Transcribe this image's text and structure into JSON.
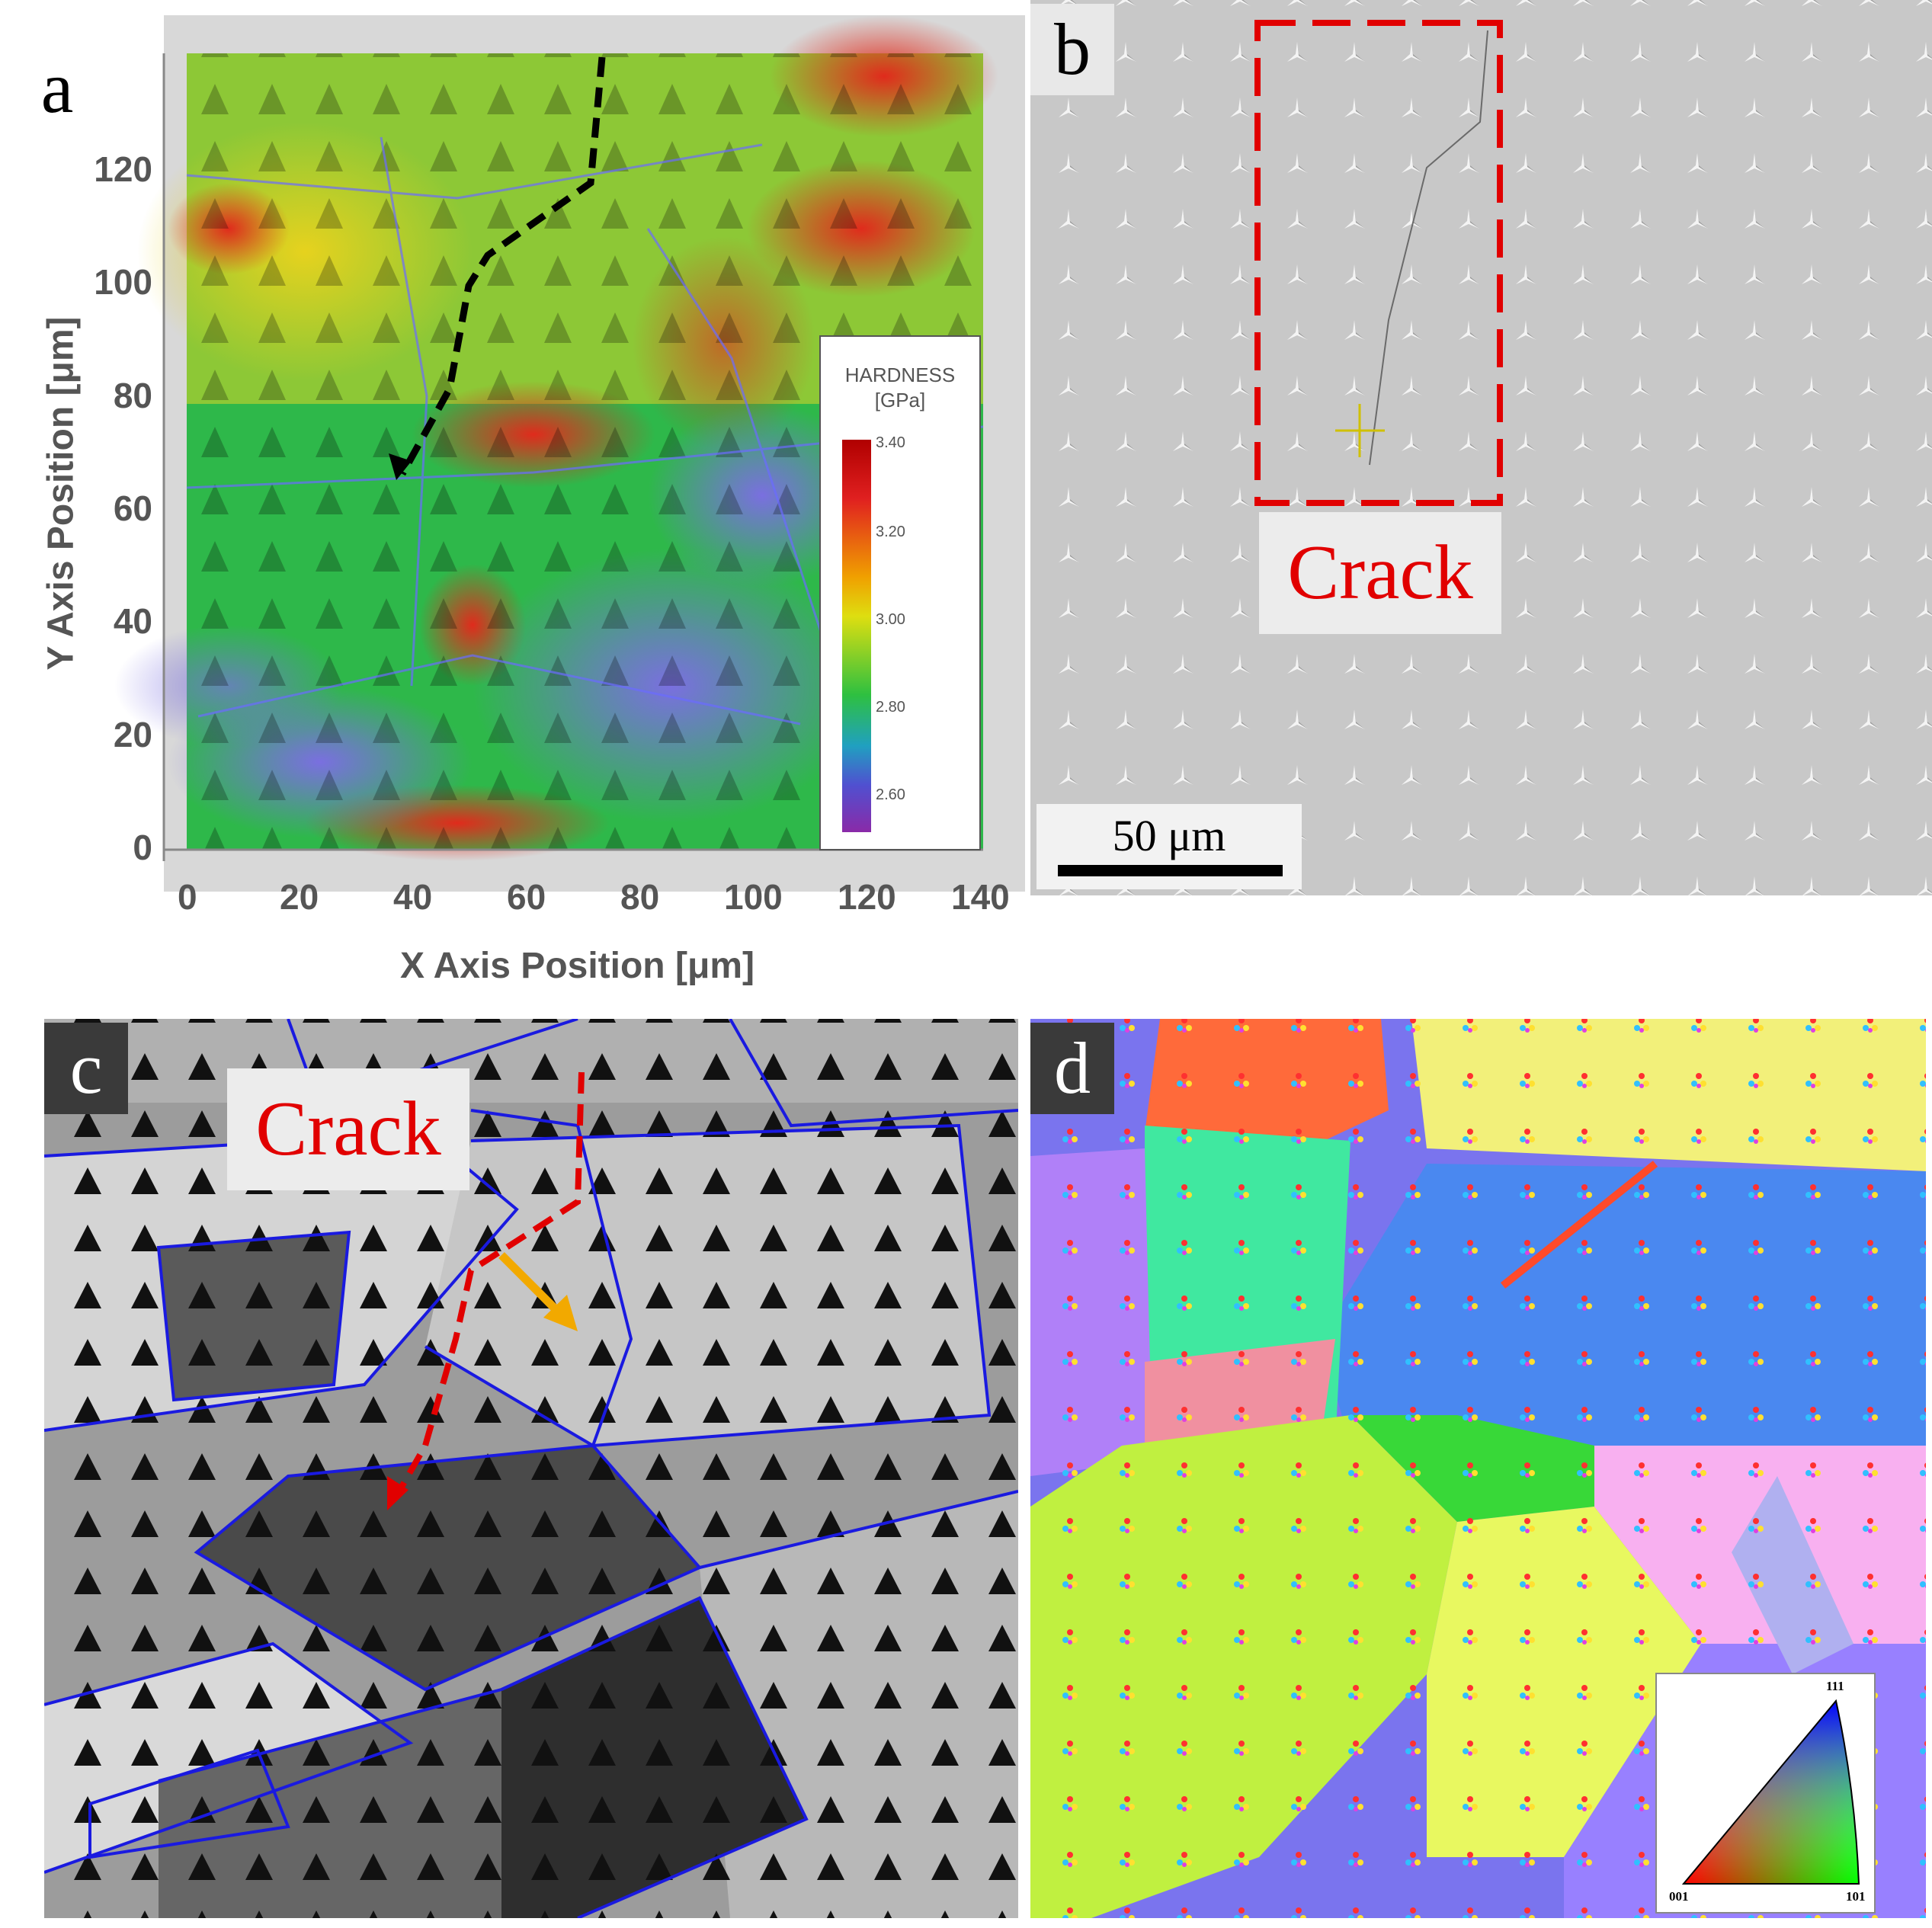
{
  "panels": {
    "a": {
      "label": "a",
      "x_axis_label": "X Axis Position [μm]",
      "y_axis_label": "Y Axis Position [μm]",
      "x_ticks": [
        "0",
        "20",
        "40",
        "60",
        "80",
        "100",
        "120",
        "140"
      ],
      "y_ticks": [
        "0",
        "20",
        "40",
        "60",
        "80",
        "100",
        "120"
      ],
      "legend": {
        "title_line1": "HARDNESS",
        "title_line2": "[GPa]",
        "ticks": [
          "3.40",
          "3.20",
          "3.00",
          "2.80",
          "2.60"
        ]
      }
    },
    "b": {
      "label": "b",
      "callout": "Crack",
      "scale_bar": "50 μm"
    },
    "c": {
      "label": "c",
      "callout": "Crack"
    },
    "d": {
      "label": "d",
      "ipf_key": {
        "top": "111",
        "left": "001",
        "right": "101"
      }
    }
  },
  "colors": {
    "crack_dashed_b": "#e10000",
    "crack_path_c": "#e10000",
    "crack_path_a": "#000000",
    "arrow_c": "#f2a900",
    "grain_boundaries": "#1a1ae0"
  }
}
